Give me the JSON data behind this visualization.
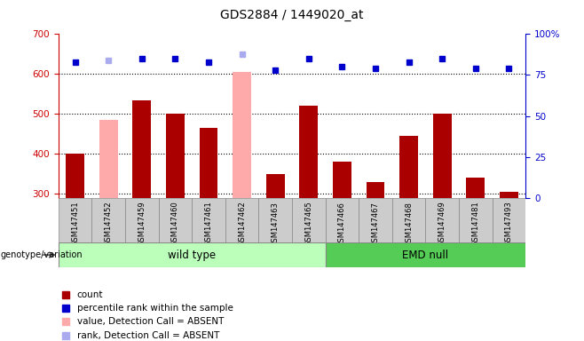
{
  "title": "GDS2884 / 1449020_at",
  "samples": [
    "GSM147451",
    "GSM147452",
    "GSM147459",
    "GSM147460",
    "GSM147461",
    "GSM147462",
    "GSM147463",
    "GSM147465",
    "GSM147466",
    "GSM147467",
    "GSM147468",
    "GSM147469",
    "GSM147481",
    "GSM147493"
  ],
  "count_values": [
    400,
    null,
    535,
    500,
    465,
    null,
    350,
    520,
    380,
    330,
    445,
    500,
    340,
    305
  ],
  "absent_value_values": [
    null,
    485,
    null,
    null,
    null,
    605,
    null,
    null,
    null,
    null,
    null,
    null,
    null,
    null
  ],
  "percentile_rank": [
    83,
    null,
    85,
    85,
    83,
    null,
    78,
    85,
    80,
    79,
    83,
    85,
    79,
    79
  ],
  "absent_rank_values": [
    null,
    84,
    null,
    null,
    null,
    88,
    null,
    null,
    null,
    null,
    null,
    null,
    null,
    null
  ],
  "ylim_left": [
    290,
    700
  ],
  "ylim_right": [
    0,
    100
  ],
  "yticks_left": [
    300,
    400,
    500,
    600,
    700
  ],
  "yticks_right": [
    0,
    25,
    50,
    75,
    100
  ],
  "bar_color_present": "#aa0000",
  "bar_color_absent": "#ffaaaa",
  "dot_color_present": "#0000cc",
  "dot_color_absent": "#aaaaee",
  "wild_type_color": "#bbffbb",
  "emd_null_color": "#55cc55",
  "bg_color": "#cccccc",
  "left_axis_color": "#cc0000",
  "right_axis_color": "#0000cc",
  "wt_count": 8,
  "emd_count": 6,
  "grid_dotted_at": [
    300,
    400,
    500,
    600
  ],
  "legend_items": [
    [
      "#aa0000",
      "count"
    ],
    [
      "#0000cc",
      "percentile rank within the sample"
    ],
    [
      "#ffaaaa",
      "value, Detection Call = ABSENT"
    ],
    [
      "#aaaaee",
      "rank, Detection Call = ABSENT"
    ]
  ]
}
